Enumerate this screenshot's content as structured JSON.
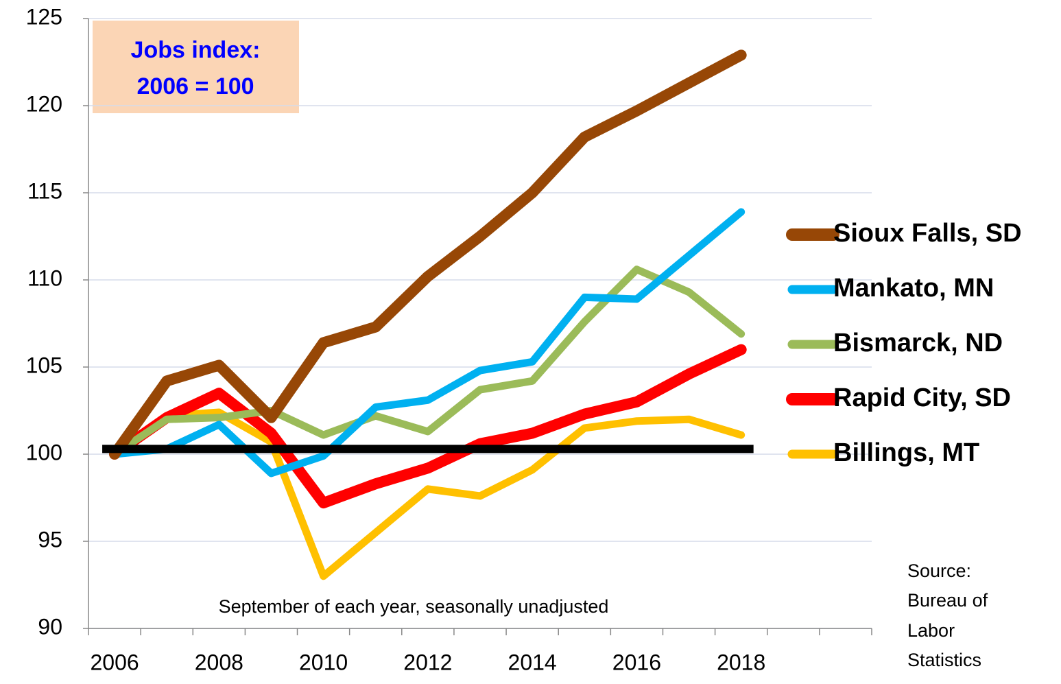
{
  "chart_data": {
    "type": "line",
    "annotation": [
      "Jobs index:",
      "2006 = 100"
    ],
    "note": "September of each year, seasonally unadjusted",
    "source": [
      "Source:",
      "Bureau of",
      "Labor",
      "Statistics"
    ],
    "categories": [
      "2006",
      null,
      "2008",
      null,
      "2010",
      null,
      "2012",
      null,
      "2014",
      null,
      "2016",
      null,
      "2018",
      null,
      null
    ],
    "series": [
      {
        "name": "Sioux Falls, SD",
        "color": "#974706",
        "values": [
          100,
          104.2,
          105.1,
          102.1,
          106.4,
          107.3,
          110.2,
          112.5,
          115,
          118.2,
          119.7,
          121.3,
          122.9,
          null,
          null
        ]
      },
      {
        "name": "Mankato, MN",
        "color": "#00b0f0",
        "values": [
          100,
          100.3,
          101.7,
          98.9,
          99.9,
          102.7,
          103.1,
          104.8,
          105.3,
          109,
          108.9,
          111.4,
          113.9,
          null,
          null
        ]
      },
      {
        "name": "Bismarck, ND",
        "color": "#9bbb59",
        "values": [
          100,
          102,
          102.1,
          102.5,
          101.1,
          102.2,
          101.3,
          103.7,
          104.2,
          107.6,
          110.6,
          109.3,
          106.9,
          null,
          null
        ]
      },
      {
        "name": "Rapid City, SD",
        "color": "#ff0000",
        "values": [
          100,
          102.1,
          103.5,
          101.2,
          97.2,
          98.3,
          99.2,
          100.6,
          101.2,
          102.3,
          103,
          104.6,
          106,
          null,
          null
        ]
      },
      {
        "name": "Billings, MT",
        "color": "#ffc000",
        "values": [
          100,
          102.2,
          102.4,
          100.7,
          93,
          95.5,
          98,
          97.6,
          99.1,
          101.5,
          101.9,
          102,
          101.1,
          null,
          null
        ]
      }
    ],
    "reference_line": {
      "value": 100.3,
      "color": "#000000"
    },
    "ylim": [
      90,
      125
    ],
    "yticks": [
      90,
      95,
      100,
      105,
      110,
      115,
      120,
      125
    ],
    "grid": true
  }
}
